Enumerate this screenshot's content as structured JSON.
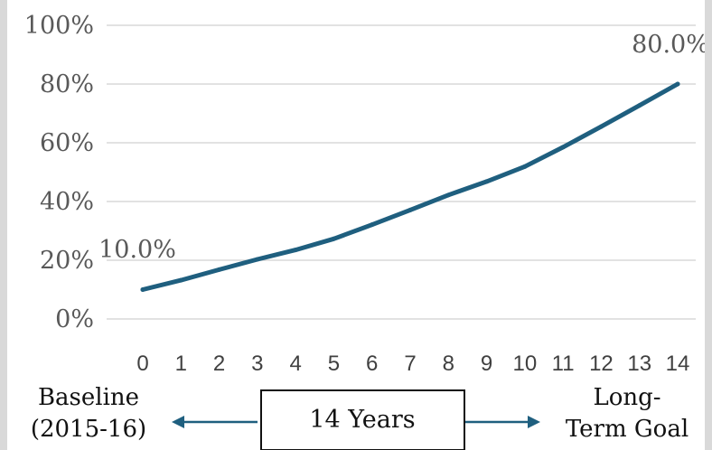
{
  "chart_data": {
    "type": "line",
    "x": [
      0,
      1,
      2,
      3,
      4,
      5,
      6,
      7,
      8,
      9,
      10,
      11,
      12,
      13,
      14
    ],
    "series": [
      {
        "values": [
          10.0,
          13.2,
          16.8,
          20.3,
          23.5,
          27.3,
          32.1,
          37.1,
          42.2,
          46.8,
          51.9,
          58.5,
          65.5,
          72.7,
          80.0
        ]
      }
    ],
    "ylim": [
      0,
      100
    ],
    "yticks": [
      "0%",
      "20%",
      "40%",
      "60%",
      "80%",
      "100%"
    ],
    "xticks": [
      "0",
      "1",
      "2",
      "3",
      "4",
      "5",
      "6",
      "7",
      "8",
      "9",
      "10",
      "11",
      "12",
      "13",
      "14"
    ],
    "data_labels": {
      "start": "10.0%",
      "end": "80.0%"
    },
    "grid": true,
    "colors": {
      "line": "#1f5f7f",
      "grid": "#d0d0d0",
      "text": "#595959"
    }
  },
  "annotations": {
    "baseline_line1": "Baseline",
    "baseline_line2": "(2015-16)",
    "goal_line1": "Long-",
    "goal_line2": "Term Goal",
    "span_label": "14 Years"
  }
}
